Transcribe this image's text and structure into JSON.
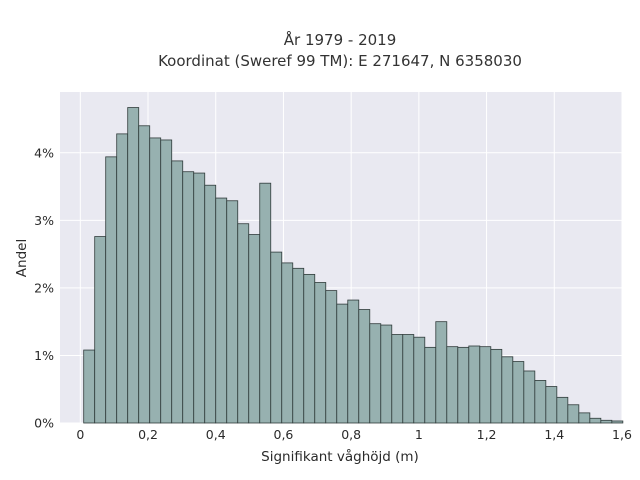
{
  "chart_data": {
    "type": "bar",
    "title_lines": [
      "År 1979 - 2019",
      "Koordinat (Sweref 99 TM): E 271647, N 6358030"
    ],
    "xlabel": "Signifikant våghöjd (m)",
    "ylabel": "Andel",
    "xlim": [
      -0.06,
      1.6
    ],
    "ylim": [
      0,
      4.9
    ],
    "x_ticks": [
      0,
      0.2,
      0.4,
      0.6,
      0.8,
      1.0,
      1.2,
      1.4,
      1.6
    ],
    "x_tick_labels": [
      "0",
      "0,2",
      "0,4",
      "0,6",
      "0,8",
      "1",
      "1,2",
      "1,4",
      "1,6"
    ],
    "y_ticks": [
      0,
      1,
      2,
      3,
      4
    ],
    "y_tick_labels": [
      "0%",
      "1%",
      "2%",
      "3%",
      "4%"
    ],
    "grid": true,
    "bin_start": 0.01,
    "bin_width": 0.0325,
    "values": [
      1.08,
      2.76,
      3.94,
      4.28,
      4.67,
      4.4,
      4.22,
      4.19,
      3.88,
      3.72,
      3.7,
      3.52,
      3.33,
      3.29,
      2.95,
      2.79,
      3.55,
      2.53,
      2.37,
      2.29,
      2.2,
      2.08,
      1.96,
      1.76,
      1.82,
      1.68,
      1.47,
      1.45,
      1.31,
      1.31,
      1.27,
      1.12,
      1.5,
      1.13,
      1.12,
      1.14,
      1.13,
      1.09,
      0.98,
      0.91,
      0.77,
      0.63,
      0.54,
      0.38,
      0.27,
      0.15,
      0.07,
      0.04,
      0.03
    ],
    "colors": {
      "bar_fill": "#97b1b0",
      "bar_stroke": "#2f3b3a",
      "plot_background": "#e9e9f1",
      "grid": "#ffffff"
    }
  }
}
